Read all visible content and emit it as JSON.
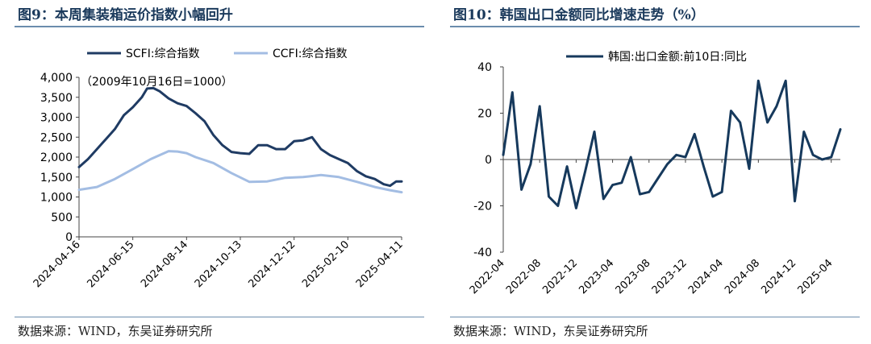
{
  "left": {
    "title": "图9：本周集装箱运价指数小幅回升",
    "source": "数据来源：WIND，东吴证券研究所"
  },
  "right": {
    "title": "图10：韩国出口金额同比增速走势（%）",
    "source": "数据来源：WIND，东吴证券研究所"
  },
  "chart_data": [
    {
      "type": "line",
      "annotation": "（2009年10月16日=1000）",
      "ylim": [
        0,
        4000
      ],
      "yticks": [
        "0",
        "500",
        "1,000",
        "1,500",
        "2,000",
        "2,500",
        "3,000",
        "3,500",
        "4,000"
      ],
      "xtick_labels": [
        "2024-04-16",
        "2024-06-15",
        "2024-08-14",
        "2024-10-13",
        "2024-12-12",
        "2025-02-10",
        "2025-04-11"
      ],
      "legend_position": "top",
      "series": [
        {
          "name": "SCFI:综合指数",
          "color": "#1f3b63",
          "points": [
            [
              "2024-04-16",
              1750
            ],
            [
              "2024-04-26",
              1950
            ],
            [
              "2024-05-06",
              2200
            ],
            [
              "2024-05-16",
              2450
            ],
            [
              "2024-05-26",
              2700
            ],
            [
              "2024-06-05",
              3050
            ],
            [
              "2024-06-15",
              3250
            ],
            [
              "2024-06-25",
              3500
            ],
            [
              "2024-07-01",
              3720
            ],
            [
              "2024-07-08",
              3730
            ],
            [
              "2024-07-15",
              3650
            ],
            [
              "2024-07-25",
              3470
            ],
            [
              "2024-08-04",
              3350
            ],
            [
              "2024-08-14",
              3280
            ],
            [
              "2024-08-24",
              3100
            ],
            [
              "2024-09-03",
              2900
            ],
            [
              "2024-09-13",
              2550
            ],
            [
              "2024-09-23",
              2300
            ],
            [
              "2024-10-03",
              2130
            ],
            [
              "2024-10-13",
              2100
            ],
            [
              "2024-10-23",
              2080
            ],
            [
              "2024-11-02",
              2300
            ],
            [
              "2024-11-12",
              2300
            ],
            [
              "2024-11-22",
              2200
            ],
            [
              "2024-12-02",
              2200
            ],
            [
              "2024-12-12",
              2400
            ],
            [
              "2024-12-22",
              2420
            ],
            [
              "2025-01-01",
              2500
            ],
            [
              "2025-01-11",
              2200
            ],
            [
              "2025-01-21",
              2050
            ],
            [
              "2025-01-31",
              1950
            ],
            [
              "2025-02-10",
              1850
            ],
            [
              "2025-02-20",
              1650
            ],
            [
              "2025-03-02",
              1520
            ],
            [
              "2025-03-12",
              1450
            ],
            [
              "2025-03-22",
              1320
            ],
            [
              "2025-03-29",
              1280
            ],
            [
              "2025-04-05",
              1390
            ],
            [
              "2025-04-11",
              1390
            ]
          ]
        },
        {
          "name": "CCFI:综合指数",
          "color": "#a3bde3",
          "points": [
            [
              "2024-04-16",
              1180
            ],
            [
              "2024-05-06",
              1250
            ],
            [
              "2024-05-26",
              1450
            ],
            [
              "2024-06-15",
              1700
            ],
            [
              "2024-07-05",
              1950
            ],
            [
              "2024-07-25",
              2150
            ],
            [
              "2024-08-04",
              2140
            ],
            [
              "2024-08-14",
              2100
            ],
            [
              "2024-08-24",
              2000
            ],
            [
              "2024-09-13",
              1850
            ],
            [
              "2024-10-03",
              1600
            ],
            [
              "2024-10-23",
              1380
            ],
            [
              "2024-11-12",
              1390
            ],
            [
              "2024-12-02",
              1480
            ],
            [
              "2024-12-22",
              1500
            ],
            [
              "2025-01-11",
              1550
            ],
            [
              "2025-01-31",
              1500
            ],
            [
              "2025-02-20",
              1380
            ],
            [
              "2025-03-12",
              1250
            ],
            [
              "2025-03-29",
              1170
            ],
            [
              "2025-04-11",
              1120
            ]
          ]
        }
      ]
    },
    {
      "type": "line",
      "ylim": [
        -40,
        40
      ],
      "yticks": [
        "-40",
        "-20",
        "0",
        "20",
        "40"
      ],
      "xtick_labels": [
        "2022-04",
        "2022-08",
        "2022-12",
        "2023-04",
        "2023-08",
        "2023-12",
        "2024-04",
        "2024-08",
        "2024-12",
        "2025-04"
      ],
      "legend_position": "top",
      "series": [
        {
          "name": "韩国:出口金额:前10日:同比",
          "color": "#16395c",
          "points": [
            [
              "2022-04",
              2
            ],
            [
              "2022-05",
              29
            ],
            [
              "2022-06",
              -13
            ],
            [
              "2022-07",
              -2
            ],
            [
              "2022-08",
              23
            ],
            [
              "2022-09",
              -16
            ],
            [
              "2022-10",
              -20
            ],
            [
              "2022-11",
              -3
            ],
            [
              "2022-12",
              -21
            ],
            [
              "2023-01",
              -5
            ],
            [
              "2023-02",
              12
            ],
            [
              "2023-03",
              -17
            ],
            [
              "2023-04",
              -11
            ],
            [
              "2023-05",
              -10
            ],
            [
              "2023-06",
              1
            ],
            [
              "2023-07",
              -15
            ],
            [
              "2023-08",
              -14
            ],
            [
              "2023-09",
              -8
            ],
            [
              "2023-10",
              -2
            ],
            [
              "2023-11",
              2
            ],
            [
              "2023-12",
              1
            ],
            [
              "2024-01",
              11
            ],
            [
              "2024-02",
              -3
            ],
            [
              "2024-03",
              -16
            ],
            [
              "2024-04",
              -14
            ],
            [
              "2024-05",
              21
            ],
            [
              "2024-06",
              16
            ],
            [
              "2024-07",
              -4
            ],
            [
              "2024-08",
              34
            ],
            [
              "2024-09",
              16
            ],
            [
              "2024-10",
              23
            ],
            [
              "2024-11",
              34
            ],
            [
              "2024-12",
              -18
            ],
            [
              "2025-01",
              12
            ],
            [
              "2025-02",
              2
            ],
            [
              "2025-03",
              0
            ],
            [
              "2025-04",
              1
            ],
            [
              "2025-05",
              13
            ]
          ]
        }
      ]
    }
  ]
}
